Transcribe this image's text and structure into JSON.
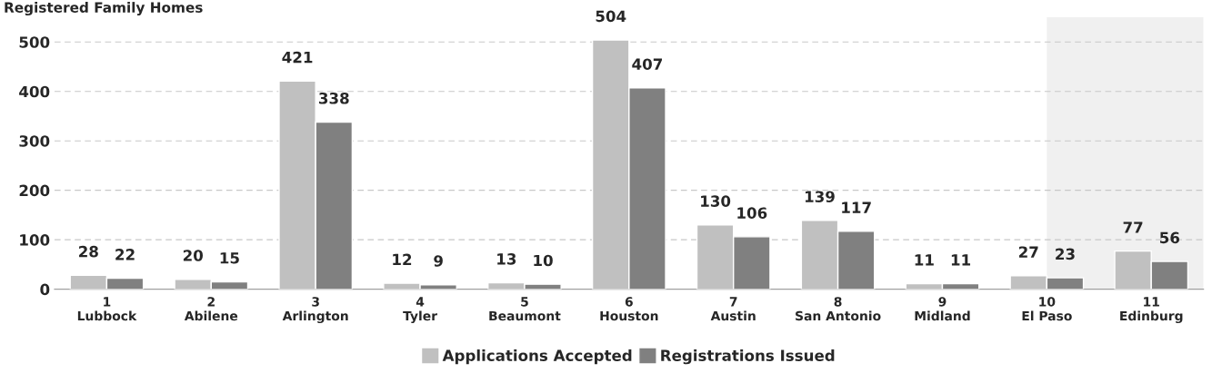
{
  "chart_data": {
    "type": "bar",
    "title": "Registered Family Homes",
    "categories": [
      "1\nLubbock",
      "2\nAbilene",
      "3\nArlington",
      "4\nTyler",
      "5\nBeaumont",
      "6\nHouston",
      "7\nAustin",
      "8\nSan Antonio",
      "9\nMidland",
      "10\nEl Paso",
      "11\nEdinburg"
    ],
    "series": [
      {
        "name": "Applications Accepted",
        "color": "#c0c0c0",
        "values": [
          28,
          20,
          421,
          12,
          13,
          504,
          130,
          139,
          11,
          27,
          77
        ]
      },
      {
        "name": "Registrations Issued",
        "color": "#808080",
        "values": [
          22,
          15,
          338,
          9,
          10,
          407,
          106,
          117,
          11,
          23,
          56
        ]
      }
    ],
    "ylim": [
      0,
      550
    ],
    "yticks": [
      0,
      100,
      200,
      300,
      400,
      500
    ],
    "grid": "y",
    "legend": "bottom",
    "data_labels": true,
    "bands": [
      {
        "axis": "x",
        "from": "10\nEl Paso",
        "to": "11\nEdinburg",
        "color": "#f0f0f0"
      }
    ]
  }
}
